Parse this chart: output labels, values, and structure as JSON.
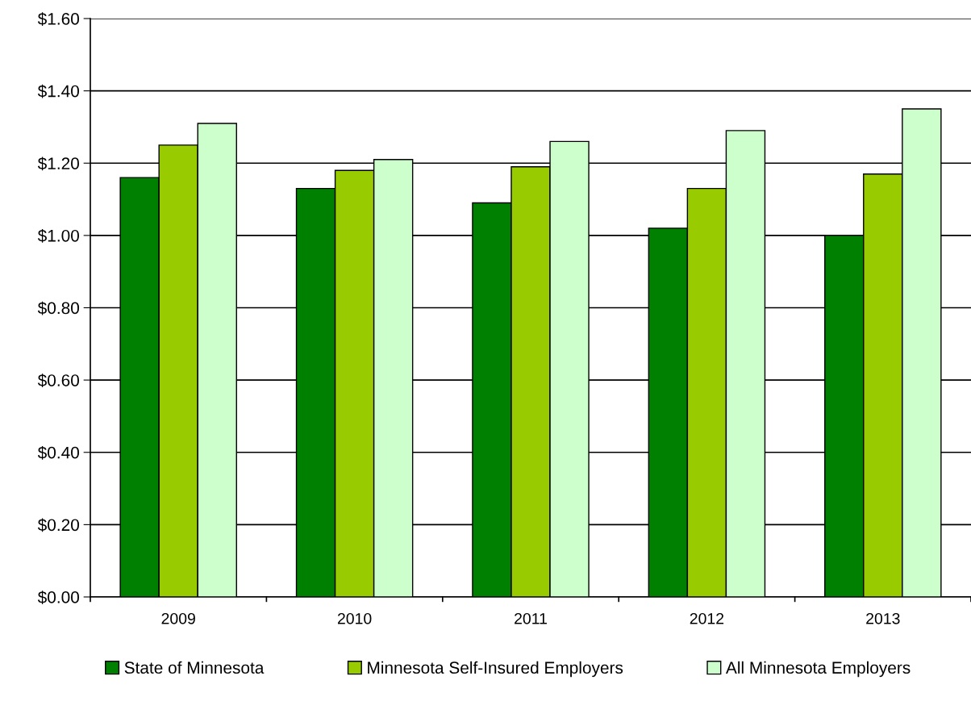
{
  "chart_data": {
    "type": "bar",
    "categories": [
      "2009",
      "2010",
      "2011",
      "2012",
      "2013"
    ],
    "series": [
      {
        "name": "State of Minnesota",
        "color": "#008000",
        "values": [
          1.16,
          1.13,
          1.09,
          1.02,
          1.0
        ]
      },
      {
        "name": "Minnesota Self-Insured Employers",
        "color": "#99cc00",
        "values": [
          1.25,
          1.18,
          1.19,
          1.13,
          1.17
        ]
      },
      {
        "name": "All Minnesota Employers",
        "color": "#ccffcc",
        "values": [
          1.31,
          1.21,
          1.26,
          1.29,
          1.35
        ]
      }
    ],
    "ylim": [
      0,
      1.6
    ],
    "yticks": [
      {
        "value": 0,
        "label": "$0.00"
      },
      {
        "value": 0.2,
        "label": "$0.20"
      },
      {
        "value": 0.4,
        "label": "$0.40"
      },
      {
        "value": 0.6,
        "label": "$0.60"
      },
      {
        "value": 0.8,
        "label": "$0.80"
      },
      {
        "value": 1.0,
        "label": "$1.00"
      },
      {
        "value": 1.2,
        "label": "$1.20"
      },
      {
        "value": 1.4,
        "label": "$1.40"
      },
      {
        "value": 1.6,
        "label": "$1.60"
      }
    ],
    "grid": "y",
    "legend": "bottom"
  }
}
